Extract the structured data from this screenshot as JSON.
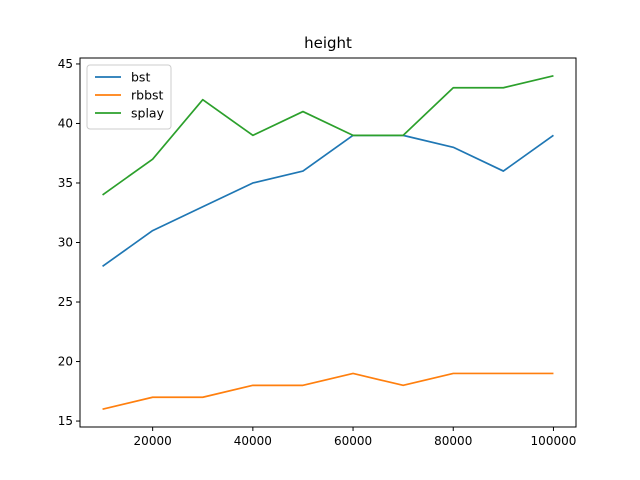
{
  "chart_data": {
    "type": "line",
    "title": "height",
    "xlabel": "",
    "ylabel": "",
    "x": [
      10000,
      20000,
      30000,
      40000,
      50000,
      60000,
      70000,
      80000,
      90000,
      100000
    ],
    "xlim": [
      5500,
      104500
    ],
    "ylim": [
      14.5,
      45.5
    ],
    "xticks": [
      20000,
      40000,
      60000,
      80000,
      100000
    ],
    "xtick_labels": [
      "20000",
      "40000",
      "60000",
      "80000",
      "100000"
    ],
    "yticks": [
      15,
      20,
      25,
      30,
      35,
      40,
      45
    ],
    "ytick_labels": [
      "15",
      "20",
      "25",
      "30",
      "35",
      "40",
      "45"
    ],
    "grid": false,
    "legend_position": "top-left",
    "series": [
      {
        "name": "bst",
        "color": "#1f77b4",
        "values": [
          28,
          31,
          33,
          35,
          36,
          39,
          39,
          38,
          36,
          39
        ]
      },
      {
        "name": "rbbst",
        "color": "#ff7f0e",
        "values": [
          16,
          17,
          17,
          18,
          18,
          19,
          18,
          19,
          19,
          19
        ]
      },
      {
        "name": "splay",
        "color": "#2ca02c",
        "values": [
          34,
          37,
          42,
          39,
          41,
          39,
          39,
          43,
          43,
          44
        ]
      }
    ]
  }
}
